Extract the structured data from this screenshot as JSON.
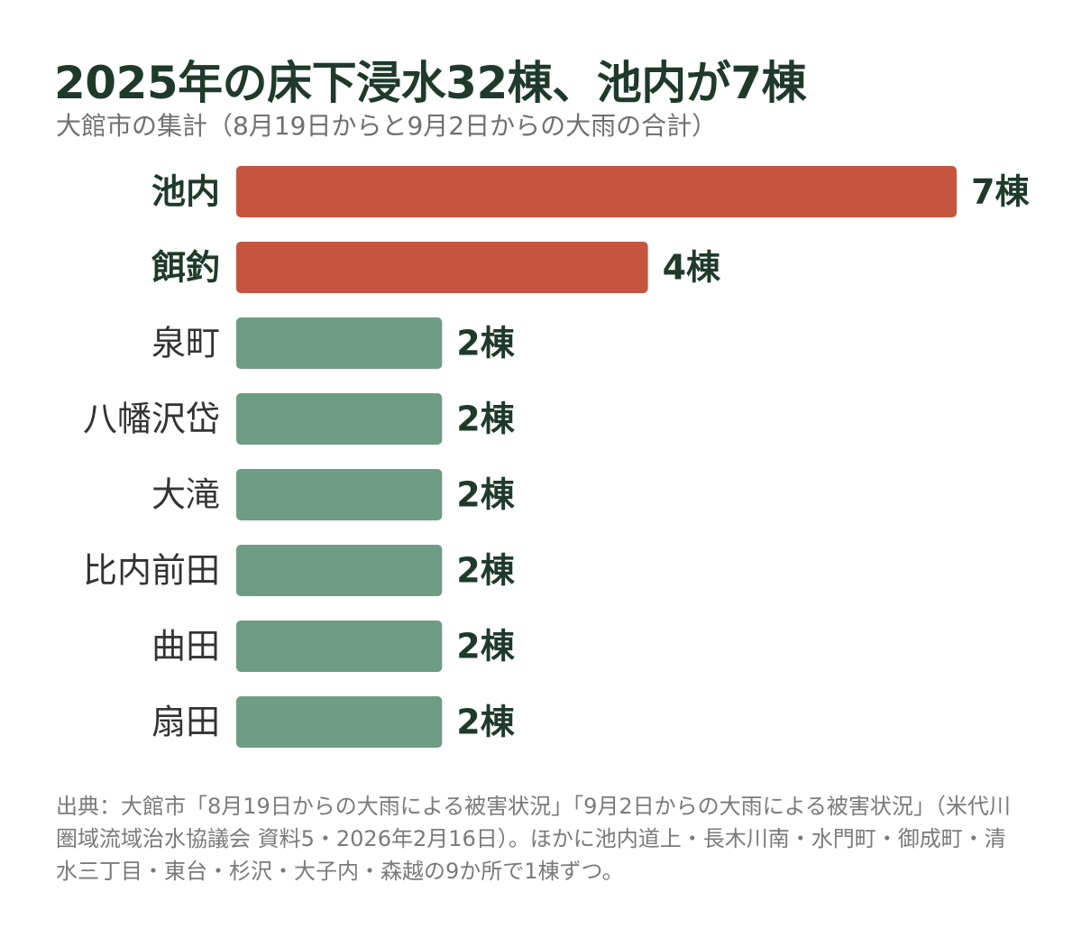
{
  "chart_data": {
    "type": "bar",
    "orientation": "horizontal",
    "title": "2025年の床下浸水32棟、池内が7棟",
    "subtitle": "大館市の集計（8月19日からと9月2日からの大雨の合計）",
    "categories": [
      "池内",
      "餌釣",
      "泉町",
      "八幡沢岱",
      "大滝",
      "比内前田",
      "曲田",
      "扇田"
    ],
    "values": [
      7,
      4,
      2,
      2,
      2,
      2,
      2,
      2
    ],
    "value_labels": [
      "7棟",
      "4棟",
      "2棟",
      "2棟",
      "2棟",
      "2棟",
      "2棟",
      "2棟"
    ],
    "highlight": [
      true,
      true,
      false,
      false,
      false,
      false,
      false,
      false
    ],
    "xlim": [
      0,
      7
    ],
    "grid": false,
    "legend": "none"
  },
  "colors": {
    "highlight": "#c5553f",
    "default": "#6e9c85",
    "text": "#1f3a2c",
    "label_highlight": "#1f3a2c",
    "label_default": "#333333"
  },
  "note": "出典：大館市「8月19日からの大雨による被害状況」「9月2日からの大雨による被害状況」（米代川圏域流域治水協議会 資料5・2026年2月16日）。ほかに池内道上・長木川南・水門町・御成町・清水三丁目・東台・杉沢・大子内・森越の9か所で1棟ずつ。"
}
